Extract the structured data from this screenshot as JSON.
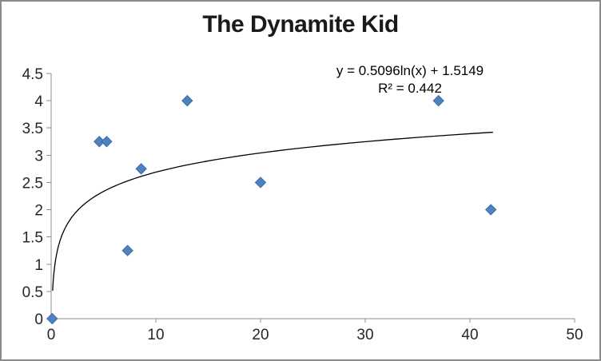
{
  "title": "The Dynamite Kid",
  "annotation": {
    "equation": "y = 0.5096ln(x) + 1.5149",
    "r_squared": "R² = 0.442"
  },
  "colors": {
    "marker_fill": "#4E81BD",
    "marker_stroke": "#3C6DA8",
    "trendline": "#000000",
    "axis": "#8E8E8E",
    "tick_label": "#262626",
    "frame_border": "#8A8A8A",
    "background": "#FFFFFF"
  },
  "chart_data": {
    "type": "scatter",
    "title": "The Dynamite Kid",
    "points": [
      [
        0.1,
        0
      ],
      [
        4.6,
        3.25
      ],
      [
        5.3,
        3.25
      ],
      [
        7.3,
        1.25
      ],
      [
        8.6,
        2.75
      ],
      [
        13,
        4
      ],
      [
        20,
        2.5
      ],
      [
        37,
        4
      ],
      [
        42,
        2
      ]
    ],
    "trendline": {
      "kind": "logarithmic",
      "a": 0.5096,
      "b": 1.5149,
      "x_start": 0.14,
      "x_end": 42.2,
      "equation_label": "y = 0.5096ln(x) + 1.5149",
      "r_squared_label": "R² = 0.442"
    },
    "x_axis": {
      "min": 0,
      "max": 50,
      "step": 10,
      "ticks": [
        "0",
        "10",
        "20",
        "30",
        "40",
        "50"
      ]
    },
    "y_axis": {
      "min": 0,
      "max": 4.5,
      "step": 0.5,
      "ticks": [
        "0",
        "0.5",
        "1",
        "1.5",
        "2",
        "2.5",
        "3",
        "3.5",
        "4",
        "4.5"
      ]
    },
    "grid": false,
    "legend": false,
    "marker_shape": "diamond"
  }
}
